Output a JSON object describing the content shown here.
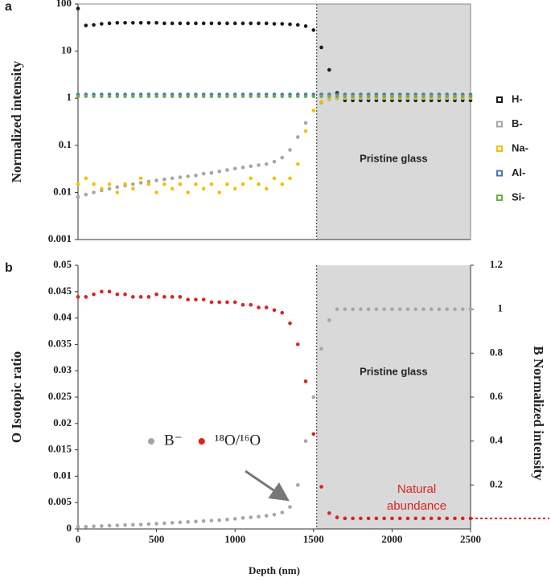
{
  "chart_data": [
    {
      "type": "scatter",
      "panel_label": "a",
      "y_label": "Normalized intensity",
      "xlim": [
        0,
        2500
      ],
      "ylim": [
        0.001,
        100
      ],
      "log_y": true,
      "yticks": [
        0.001,
        0.01,
        0.1,
        1,
        10,
        100
      ],
      "shaded_region": {
        "xlim": [
          1520,
          2500
        ],
        "label": "Pristine glass",
        "color": "#d9d9d9"
      },
      "vline": 1520,
      "legend": "right-outside",
      "x": [
        0,
        50,
        100,
        150,
        200,
        250,
        300,
        350,
        400,
        450,
        500,
        550,
        600,
        650,
        700,
        750,
        800,
        850,
        900,
        950,
        1000,
        1050,
        1100,
        1150,
        1200,
        1250,
        1300,
        1350,
        1400,
        1450,
        1500,
        1550,
        1600,
        1650,
        1700,
        1750,
        1800,
        1850,
        1900,
        1950,
        2000,
        2050,
        2100,
        2150,
        2200,
        2250,
        2300,
        2350,
        2400,
        2450,
        2500
      ],
      "series": [
        {
          "name": "H-",
          "color": "#1a1a1a",
          "values": [
            80,
            35,
            36,
            38,
            39,
            40,
            40,
            40,
            40,
            40,
            40,
            39,
            39,
            39,
            39,
            39,
            39,
            39,
            39,
            39,
            39,
            39,
            39,
            39,
            39,
            38,
            38,
            37,
            36,
            34,
            28,
            12,
            4,
            1.3,
            0.9,
            0.9,
            0.9,
            0.9,
            0.9,
            0.9,
            0.9,
            0.9,
            0.9,
            0.9,
            0.9,
            0.9,
            0.9,
            0.9,
            0.9,
            0.9,
            0.9
          ]
        },
        {
          "name": "B-",
          "color": "#a6a6a6",
          "values": [
            0.008,
            0.009,
            0.01,
            0.011,
            0.012,
            0.013,
            0.014,
            0.015,
            0.016,
            0.017,
            0.018,
            0.019,
            0.02,
            0.021,
            0.022,
            0.023,
            0.025,
            0.026,
            0.028,
            0.03,
            0.032,
            0.034,
            0.036,
            0.038,
            0.04,
            0.045,
            0.055,
            0.08,
            0.15,
            0.3,
            0.55,
            0.8,
            0.95,
            1,
            1,
            1,
            1,
            1,
            1,
            1,
            1,
            1,
            1,
            1,
            1,
            1,
            1,
            1,
            1,
            1,
            1
          ]
        },
        {
          "name": "Na-",
          "color": "#f5c000",
          "values": [
            0.015,
            0.02,
            0.015,
            0.012,
            0.015,
            0.01,
            0.015,
            0.012,
            0.02,
            0.015,
            0.01,
            0.015,
            0.012,
            0.015,
            0.01,
            0.015,
            0.012,
            0.015,
            0.01,
            0.015,
            0.012,
            0.015,
            0.02,
            0.015,
            0.012,
            0.02,
            0.015,
            0.02,
            0.04,
            0.2,
            0.55,
            0.85,
            1,
            1.05,
            1.05,
            1.05,
            1.05,
            1.05,
            1.05,
            1.05,
            1.05,
            1.05,
            1.05,
            1.05,
            1.05,
            1.05,
            1.05,
            1.05,
            1.05,
            1.05,
            1.05
          ]
        },
        {
          "name": "Al-",
          "color": "#4472c4",
          "values": [
            1.2,
            1.2,
            1.2,
            1.2,
            1.2,
            1.2,
            1.2,
            1.2,
            1.2,
            1.2,
            1.2,
            1.2,
            1.2,
            1.2,
            1.2,
            1.2,
            1.2,
            1.2,
            1.2,
            1.2,
            1.2,
            1.2,
            1.2,
            1.2,
            1.2,
            1.2,
            1.2,
            1.2,
            1.2,
            1.2,
            1.2,
            1.2,
            1.2,
            1.2,
            1.2,
            1.2,
            1.2,
            1.2,
            1.2,
            1.2,
            1.2,
            1.2,
            1.2,
            1.2,
            1.2,
            1.2,
            1.2,
            1.2,
            1.2,
            1.2,
            1.2
          ]
        },
        {
          "name": "Si-",
          "color": "#70ad47",
          "values": [
            1.1,
            1.1,
            1.1,
            1.1,
            1.1,
            1.1,
            1.1,
            1.1,
            1.1,
            1.1,
            1.1,
            1.1,
            1.1,
            1.1,
            1.1,
            1.1,
            1.1,
            1.1,
            1.1,
            1.1,
            1.1,
            1.1,
            1.1,
            1.1,
            1.1,
            1.1,
            1.1,
            1.1,
            1.1,
            1.1,
            1.1,
            1.1,
            1.1,
            1.1,
            1.1,
            1.1,
            1.1,
            1.1,
            1.1,
            1.1,
            1.1,
            1.1,
            1.1,
            1.1,
            1.1,
            1.1,
            1.1,
            1.1,
            1.1,
            1.1,
            1.1
          ]
        }
      ]
    },
    {
      "type": "scatter",
      "panel_label": "b",
      "x_label": "Depth (nm)",
      "y_label": "O Isotopic ratio",
      "y2_label": "B Normalized intensity",
      "xlim": [
        0,
        2500
      ],
      "xticks": [
        0,
        500,
        1000,
        1500,
        2000,
        2500
      ],
      "ylim": [
        0,
        0.05
      ],
      "yticks": [
        0,
        0.005,
        0.01,
        0.015,
        0.02,
        0.025,
        0.03,
        0.035,
        0.04,
        0.045,
        0.05
      ],
      "y2lim": [
        0,
        1.2
      ],
      "y2ticks": [
        0.2,
        0.4,
        0.6,
        0.8,
        1,
        1.2
      ],
      "shaded_region": {
        "xlim": [
          1520,
          2500
        ],
        "label": "Pristine glass",
        "color": "#d9d9d9"
      },
      "vline": 1520,
      "legend": "center-left",
      "reference_line": {
        "y": 0.002,
        "color": "#e02020"
      },
      "annotation": {
        "text": [
          "Natural",
          "abundance"
        ],
        "color": "#e02020"
      },
      "x": [
        0,
        50,
        100,
        150,
        200,
        250,
        300,
        350,
        400,
        450,
        500,
        550,
        600,
        650,
        700,
        750,
        800,
        850,
        900,
        950,
        1000,
        1050,
        1100,
        1150,
        1200,
        1250,
        1300,
        1350,
        1400,
        1450,
        1500,
        1550,
        1600,
        1650,
        1700,
        1750,
        1800,
        1850,
        1900,
        1950,
        2000,
        2050,
        2100,
        2150,
        2200,
        2250,
        2300,
        2350,
        2400,
        2450,
        2500
      ],
      "series": [
        {
          "name": "B⁻",
          "color": "#a6a6a6",
          "axis": "y2",
          "values": [
            0.01,
            0.01,
            0.012,
            0.013,
            0.015,
            0.016,
            0.018,
            0.019,
            0.02,
            0.022,
            0.024,
            0.026,
            0.028,
            0.03,
            0.032,
            0.034,
            0.036,
            0.038,
            0.04,
            0.043,
            0.046,
            0.05,
            0.053,
            0.056,
            0.06,
            0.065,
            0.075,
            0.1,
            0.2,
            0.4,
            0.6,
            0.82,
            0.95,
            1,
            1,
            1,
            1,
            1,
            1,
            1,
            1,
            1,
            1,
            1,
            1,
            1,
            1,
            1,
            1,
            1,
            1
          ]
        },
        {
          "name": "¹⁸O/¹⁶O",
          "color": "#e02020",
          "values": [
            0.044,
            0.044,
            0.0445,
            0.045,
            0.045,
            0.0445,
            0.0445,
            0.044,
            0.044,
            0.044,
            0.0445,
            0.044,
            0.044,
            0.044,
            0.0435,
            0.0435,
            0.0435,
            0.043,
            0.043,
            0.043,
            0.043,
            0.0425,
            0.0425,
            0.042,
            0.042,
            0.0415,
            0.041,
            0.039,
            0.035,
            0.028,
            0.018,
            0.008,
            0.003,
            0.0022,
            0.002,
            0.002,
            0.002,
            0.002,
            0.002,
            0.002,
            0.002,
            0.002,
            0.002,
            0.002,
            0.002,
            0.002,
            0.002,
            0.002,
            0.002,
            0.002,
            0.002
          ]
        }
      ]
    }
  ]
}
